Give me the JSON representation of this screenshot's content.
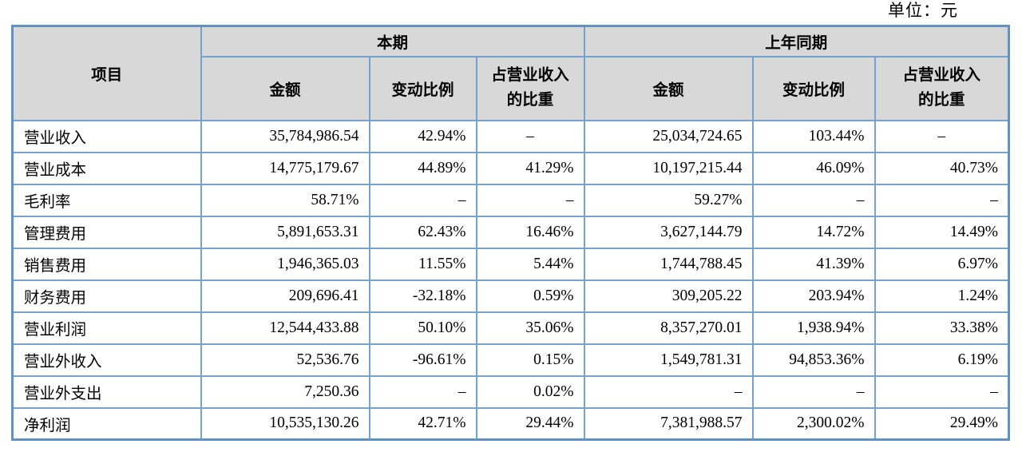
{
  "unit_label": "单位：元",
  "colors": {
    "border_inner": "#74a3d1",
    "border_outer": "#5e92c4",
    "header_bg": "#d8d8d8",
    "text": "#000000"
  },
  "table": {
    "header": {
      "item": "项目",
      "groups": [
        {
          "title": "本期",
          "columns": [
            "金额",
            "变动比例",
            "占营业收入\n的比重"
          ]
        },
        {
          "title": "上年同期",
          "columns": [
            "金额",
            "变动比例",
            "占营业收入\n的比重"
          ]
        }
      ]
    },
    "rows": [
      {
        "label": "营业收入",
        "cells": [
          {
            "t": "35,784,986.54"
          },
          {
            "t": "42.94%"
          },
          {
            "t": "–",
            "a": "center"
          },
          {
            "t": "25,034,724.65"
          },
          {
            "t": "103.44%"
          },
          {
            "t": "–",
            "a": "center"
          }
        ]
      },
      {
        "label": "营业成本",
        "cells": [
          {
            "t": "14,775,179.67"
          },
          {
            "t": "44.89%"
          },
          {
            "t": "41.29%"
          },
          {
            "t": "10,197,215.44"
          },
          {
            "t": "46.09%"
          },
          {
            "t": "40.73%"
          }
        ]
      },
      {
        "label": "毛利率",
        "cells": [
          {
            "t": "58.71%"
          },
          {
            "t": "–"
          },
          {
            "t": "–"
          },
          {
            "t": "59.27%"
          },
          {
            "t": "–"
          },
          {
            "t": "–"
          }
        ]
      },
      {
        "label": "管理费用",
        "cells": [
          {
            "t": "5,891,653.31"
          },
          {
            "t": "62.43%"
          },
          {
            "t": "16.46%"
          },
          {
            "t": "3,627,144.79"
          },
          {
            "t": "14.72%"
          },
          {
            "t": "14.49%"
          }
        ]
      },
      {
        "label": "销售费用",
        "cells": [
          {
            "t": "1,946,365.03"
          },
          {
            "t": "11.55%"
          },
          {
            "t": "5.44%"
          },
          {
            "t": "1,744,788.45"
          },
          {
            "t": "41.39%"
          },
          {
            "t": "6.97%"
          }
        ]
      },
      {
        "label": "财务费用",
        "cells": [
          {
            "t": "209,696.41"
          },
          {
            "t": "-32.18%"
          },
          {
            "t": "0.59%"
          },
          {
            "t": "309,205.22"
          },
          {
            "t": "203.94%"
          },
          {
            "t": "1.24%"
          }
        ]
      },
      {
        "label": "营业利润",
        "cells": [
          {
            "t": "12,544,433.88"
          },
          {
            "t": "50.10%"
          },
          {
            "t": "35.06%"
          },
          {
            "t": "8,357,270.01"
          },
          {
            "t": "1,938.94%"
          },
          {
            "t": "33.38%"
          }
        ]
      },
      {
        "label": "营业外收入",
        "cells": [
          {
            "t": "52,536.76"
          },
          {
            "t": "-96.61%"
          },
          {
            "t": "0.15%"
          },
          {
            "t": "1,549,781.31"
          },
          {
            "t": "94,853.36%"
          },
          {
            "t": "6.19%"
          }
        ]
      },
      {
        "label": "营业外支出",
        "cells": [
          {
            "t": "7,250.36"
          },
          {
            "t": "–"
          },
          {
            "t": "0.02%"
          },
          {
            "t": "–"
          },
          {
            "t": "–"
          },
          {
            "t": "–"
          }
        ]
      },
      {
        "label": "净利润",
        "cells": [
          {
            "t": "10,535,130.26"
          },
          {
            "t": "42.71%"
          },
          {
            "t": "29.44%"
          },
          {
            "t": "7,381,988.57"
          },
          {
            "t": "2,300.02%"
          },
          {
            "t": "29.49%"
          }
        ]
      }
    ]
  }
}
